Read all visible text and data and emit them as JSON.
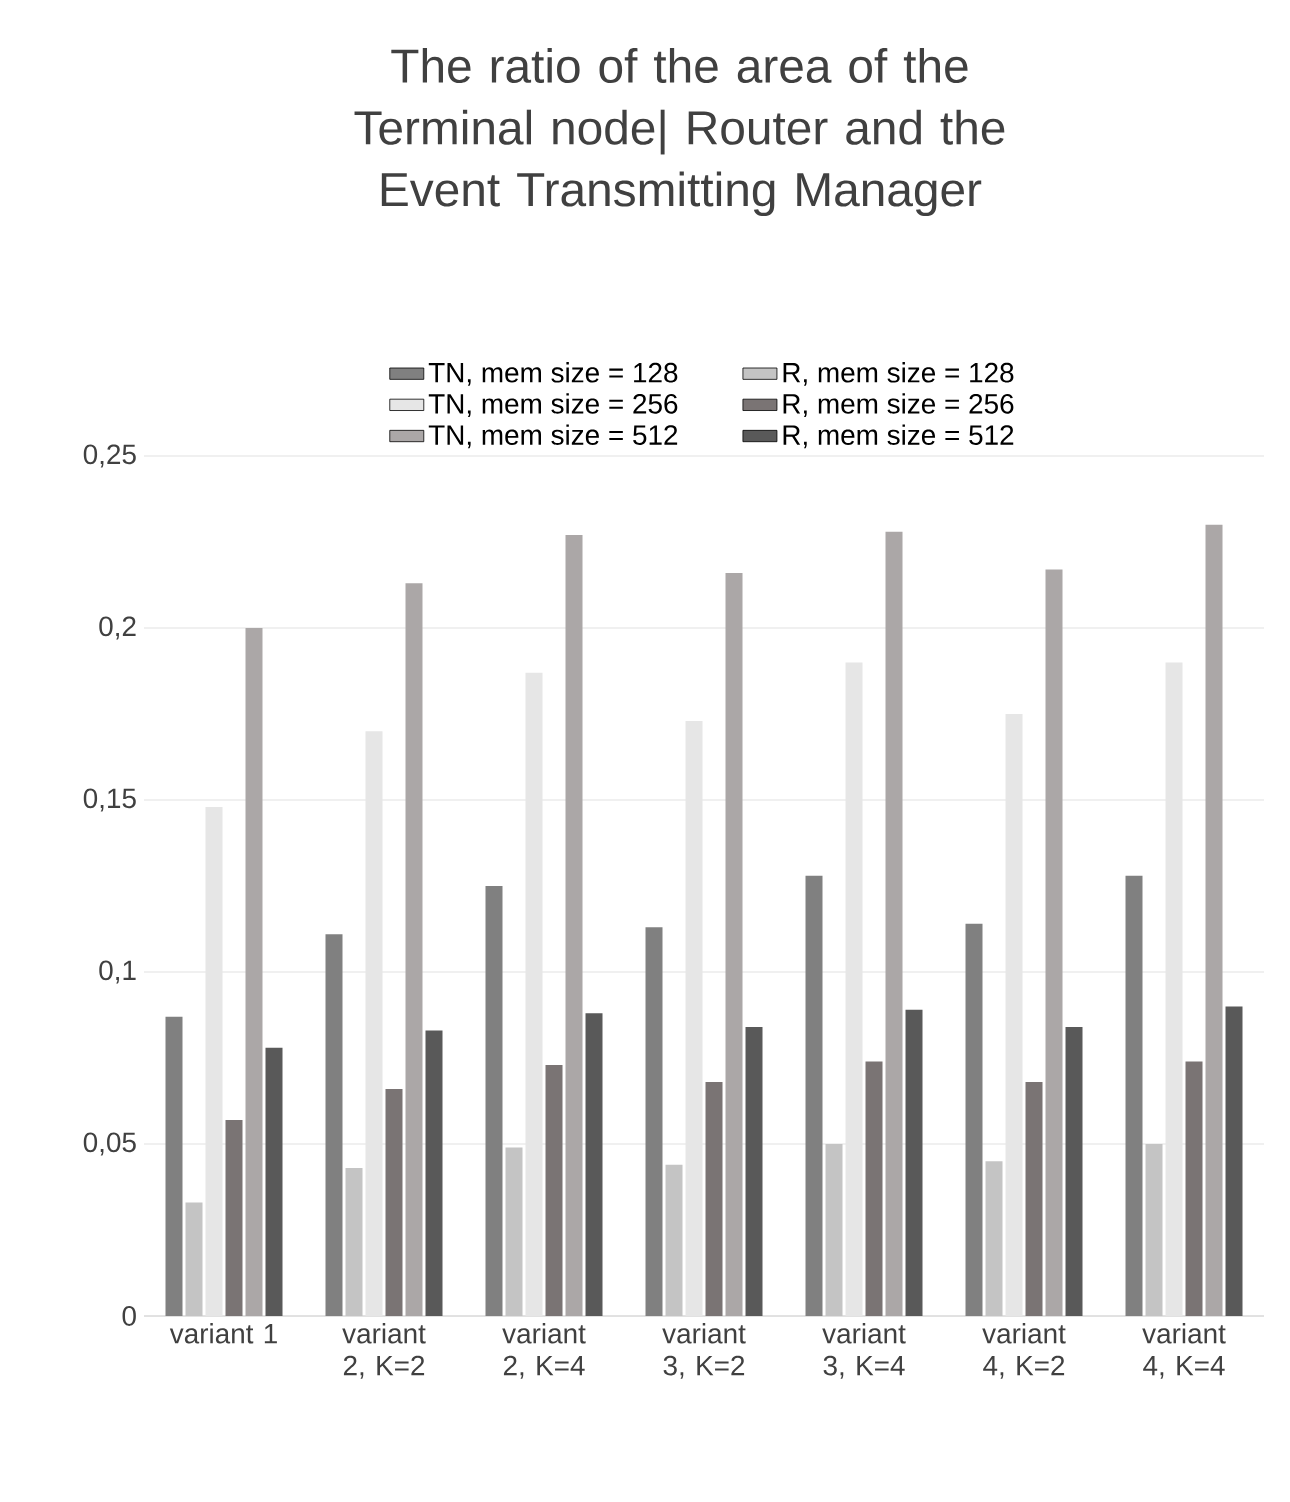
{
  "chart_data": {
    "type": "bar",
    "title": "The ratio of the area of the Terminal node| Router and the Event Transmitting Manager",
    "categories": [
      "variant 1",
      "variant 2, K=2",
      "variant 2, K=4",
      "variant 3, K=2",
      "variant 3, K=4",
      "variant 4, K=2",
      "variant 4, K=4"
    ],
    "series": [
      {
        "name": "TN, mem size = 128",
        "color": "#808080",
        "values": [
          0.087,
          0.111,
          0.125,
          0.113,
          0.128,
          0.114,
          0.128
        ]
      },
      {
        "name": "R, mem size = 128",
        "color": "#c4c4c4",
        "values": [
          0.033,
          0.043,
          0.049,
          0.044,
          0.05,
          0.045,
          0.05
        ]
      },
      {
        "name": "TN, mem size = 256",
        "color": "#e6e6e6",
        "values": [
          0.148,
          0.17,
          0.187,
          0.173,
          0.19,
          0.175,
          0.19
        ]
      },
      {
        "name": "R, mem size = 256",
        "color": "#7a7474",
        "values": [
          0.057,
          0.066,
          0.073,
          0.068,
          0.074,
          0.068,
          0.074
        ]
      },
      {
        "name": "TN, mem size = 512",
        "color": "#aba7a7",
        "values": [
          0.2,
          0.213,
          0.227,
          0.216,
          0.228,
          0.217,
          0.23
        ]
      },
      {
        "name": "R, mem size = 512",
        "color": "#595959",
        "values": [
          0.078,
          0.083,
          0.088,
          0.084,
          0.089,
          0.084,
          0.09
        ]
      }
    ],
    "ylim": [
      0,
      0.25
    ],
    "yticks": [
      {
        "value": 0,
        "label": "0"
      },
      {
        "value": 0.05,
        "label": "0,05"
      },
      {
        "value": 0.1,
        "label": "0,1"
      },
      {
        "value": 0.15,
        "label": "0,15"
      },
      {
        "value": 0.2,
        "label": "0,2"
      },
      {
        "value": 0.25,
        "label": "0,25"
      }
    ],
    "grid": "y",
    "legend": "top"
  }
}
